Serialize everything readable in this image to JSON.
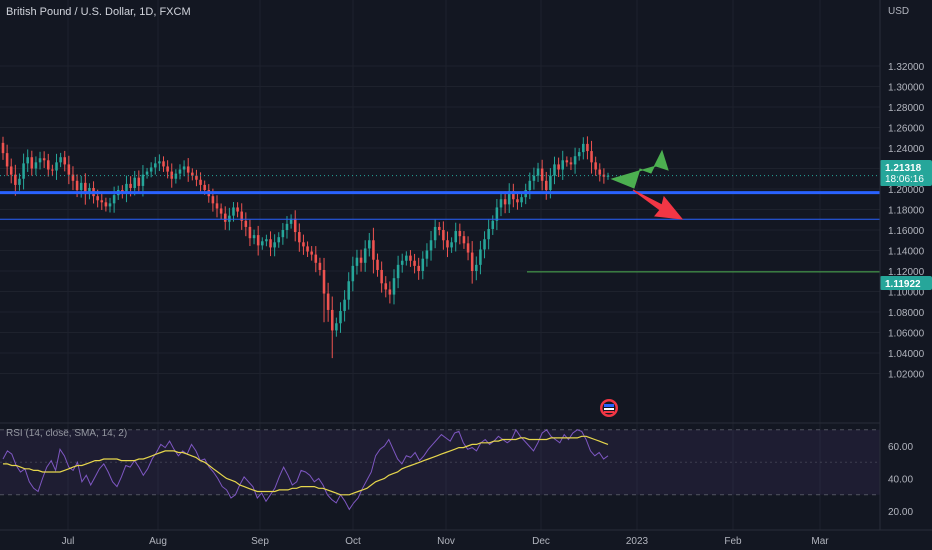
{
  "header": {
    "symbol_title": "British Pound / U.S. Dollar, 1D, FXCM"
  },
  "price_axis": {
    "currency": "USD",
    "ticks": [
      "1.32000",
      "1.30000",
      "1.28000",
      "1.26000",
      "1.24000",
      "1.22000",
      "1.20000",
      "1.18000",
      "1.16000",
      "1.14000",
      "1.12000",
      "1.10000",
      "1.08000",
      "1.06000",
      "1.04000",
      "1.02000"
    ],
    "tick_values": [
      1.32,
      1.3,
      1.28,
      1.26,
      1.24,
      1.22,
      1.2,
      1.18,
      1.16,
      1.14,
      1.12,
      1.1,
      1.08,
      1.06,
      1.04,
      1.02
    ],
    "current_price_label": "1.21318",
    "countdown_label": "18:06:16",
    "level_price_label": "1.11922",
    "colors": {
      "current": "#26a69a",
      "level": "#26a69a"
    }
  },
  "time_axis": {
    "labels": [
      "Jul",
      "Aug",
      "Sep",
      "Oct",
      "Nov",
      "Dec",
      "2023",
      "Feb",
      "Mar"
    ]
  },
  "rsi": {
    "label": "RSI (14, close, SMA, 14, 2)",
    "ticks": [
      "60.00",
      "40.00",
      "20.00"
    ],
    "tick_values": [
      60,
      40,
      20
    ],
    "band_upper": 70,
    "band_lower": 30,
    "line_color": "#7e57c2",
    "sma_color": "#e6d64c",
    "series_rsi": [
      52,
      57,
      55,
      48,
      44,
      46,
      38,
      34,
      32,
      40,
      47,
      51,
      45,
      58,
      54,
      47,
      45,
      50,
      38,
      42,
      36,
      41,
      46,
      49,
      44,
      38,
      35,
      41,
      48,
      47,
      51,
      47,
      42,
      46,
      52,
      56,
      61,
      59,
      63,
      58,
      54,
      57,
      55,
      61,
      57,
      51,
      52,
      47,
      44,
      40,
      35,
      33,
      28,
      30,
      36,
      41,
      38,
      35,
      28,
      31,
      26,
      30,
      34,
      41,
      47,
      42,
      36,
      38,
      45,
      44,
      42,
      38,
      40,
      36,
      30,
      27,
      25,
      30,
      26,
      21,
      25,
      28,
      34,
      39,
      44,
      54,
      58,
      60,
      64,
      58,
      52,
      49,
      54,
      53,
      56,
      51,
      54,
      58,
      61,
      64,
      67,
      65,
      63,
      68,
      69,
      62,
      58,
      59,
      57,
      62,
      64,
      61,
      63,
      66,
      64,
      62,
      64,
      70,
      66,
      63,
      60,
      57,
      62,
      68,
      70,
      66,
      64,
      62,
      67,
      64,
      68,
      70,
      69,
      64,
      57,
      54,
      56,
      52,
      54
    ],
    "series_sma": [
      49,
      49,
      48,
      48,
      47,
      46,
      46,
      45,
      45,
      44,
      44,
      44,
      44,
      44,
      45,
      46,
      47,
      48,
      48,
      49,
      50,
      51,
      51,
      52,
      52,
      52,
      52,
      51,
      51,
      51,
      51,
      52,
      52,
      53,
      54,
      55,
      56,
      57,
      57,
      57,
      56,
      56,
      55,
      54,
      53,
      51,
      50,
      48,
      46,
      44,
      42,
      40,
      39,
      38,
      36,
      35,
      34,
      33,
      32,
      32,
      32,
      32,
      32,
      33,
      33,
      33,
      34,
      34,
      35,
      35,
      35,
      35,
      34,
      34,
      33,
      32,
      31,
      30,
      30,
      30,
      31,
      32,
      33,
      34,
      36,
      38,
      39,
      40,
      42,
      43,
      44,
      46,
      47,
      48,
      49,
      50,
      51,
      52,
      53,
      54,
      55,
      56,
      57,
      58,
      59,
      59,
      60,
      61,
      61,
      62,
      62,
      62,
      63,
      63,
      64,
      64,
      64,
      64,
      65,
      65,
      64,
      64,
      64,
      64,
      64,
      65,
      65,
      65,
      65,
      65,
      65,
      65,
      66,
      66,
      65,
      64,
      63,
      62,
      61
    ]
  },
  "chart_data": {
    "type": "candlestick",
    "title": "British Pound / U.S. Dollar, 1D, FXCM",
    "ylabel": "USD",
    "ylim": [
      1.01,
      1.345
    ],
    "x_labels": [
      "Jul",
      "Aug",
      "Sep",
      "Oct",
      "Nov",
      "Dec",
      "2023",
      "Feb",
      "Mar"
    ],
    "up_color": "#26a69a",
    "down_color": "#ef5350",
    "start_close": 1.245,
    "daily_closes": [
      1.235,
      1.222,
      1.214,
      1.204,
      1.21,
      1.225,
      1.231,
      1.22,
      1.226,
      1.23,
      1.228,
      1.219,
      1.218,
      1.226,
      1.231,
      1.224,
      1.214,
      1.208,
      1.199,
      1.206,
      1.195,
      1.201,
      1.193,
      1.189,
      1.187,
      1.183,
      1.186,
      1.194,
      1.199,
      1.196,
      1.205,
      1.201,
      1.211,
      1.203,
      1.214,
      1.217,
      1.221,
      1.225,
      1.227,
      1.222,
      1.217,
      1.21,
      1.215,
      1.219,
      1.222,
      1.216,
      1.213,
      1.209,
      1.204,
      1.199,
      1.193,
      1.186,
      1.181,
      1.176,
      1.168,
      1.174,
      1.182,
      1.178,
      1.169,
      1.163,
      1.152,
      1.155,
      1.145,
      1.149,
      1.151,
      1.143,
      1.148,
      1.153,
      1.16,
      1.166,
      1.171,
      1.158,
      1.148,
      1.144,
      1.139,
      1.136,
      1.128,
      1.121,
      1.098,
      1.082,
      1.062,
      1.069,
      1.081,
      1.092,
      1.11,
      1.125,
      1.133,
      1.128,
      1.142,
      1.15,
      1.131,
      1.121,
      1.108,
      1.102,
      1.097,
      1.113,
      1.126,
      1.13,
      1.135,
      1.13,
      1.125,
      1.12,
      1.132,
      1.14,
      1.15,
      1.163,
      1.16,
      1.15,
      1.143,
      1.148,
      1.159,
      1.154,
      1.147,
      1.138,
      1.12,
      1.126,
      1.141,
      1.151,
      1.161,
      1.169,
      1.182,
      1.19,
      1.185,
      1.198,
      1.19,
      1.187,
      1.192,
      1.199,
      1.208,
      1.213,
      1.22,
      1.208,
      1.199,
      1.213,
      1.224,
      1.219,
      1.228,
      1.226,
      1.224,
      1.232,
      1.236,
      1.244,
      1.237,
      1.226,
      1.219,
      1.214,
      1.212,
      1.213
    ],
    "lines": [
      {
        "name": "support",
        "price": 1.1965,
        "color": "#2962ff",
        "width": 3
      },
      {
        "name": "lower-line",
        "price": 1.1705,
        "color": "#2962ff",
        "width": 1
      },
      {
        "name": "level-1-11922",
        "price": 1.1192,
        "color": "#4caf50",
        "width": 1,
        "start_index": 98
      }
    ],
    "arrows": [
      {
        "name": "up-arrow",
        "color": "#4caf50"
      },
      {
        "name": "down-arrow",
        "color": "#f23645"
      }
    ]
  }
}
